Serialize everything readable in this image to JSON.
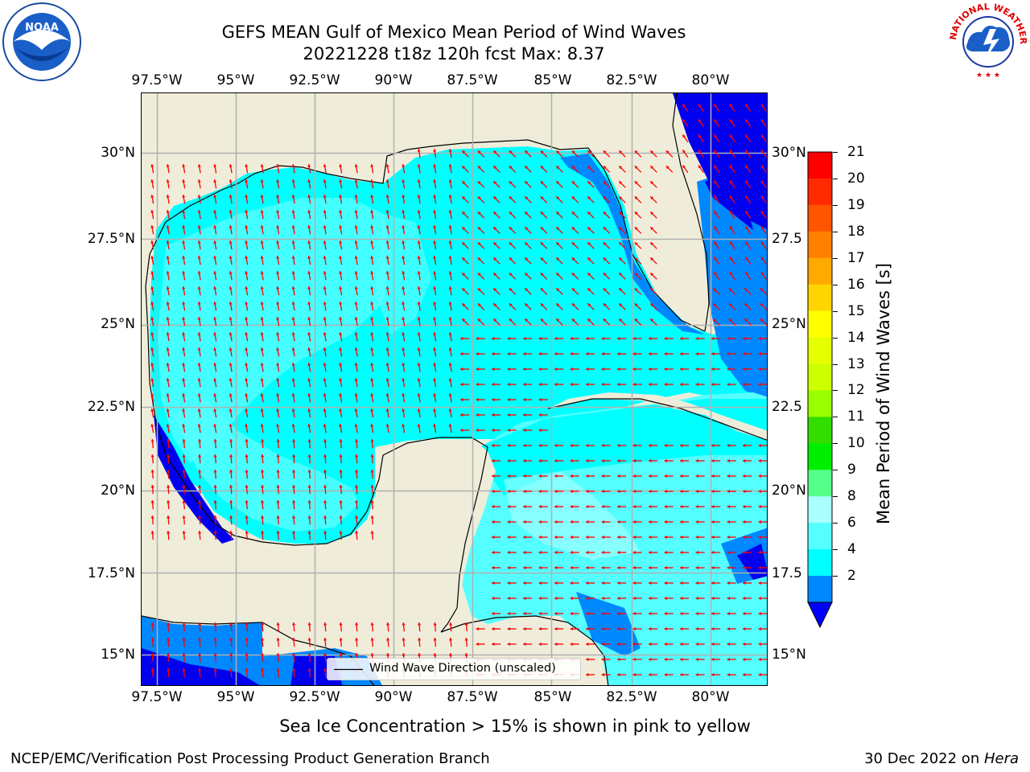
{
  "header": {
    "title_line1": "GEFS MEAN Gulf of Mexico Mean Period of Wind Waves",
    "title_line2": "20221228 t18z 120h fcst   Max: 8.37"
  },
  "logos": {
    "left": "noora-logo",
    "right": "nws-logo",
    "nws_text": "NATIONAL WEATHER SERVICE"
  },
  "axes": {
    "lon_labels": [
      "97.5°W",
      "95°W",
      "92.5°W",
      "90°W",
      "87.5°W",
      "85°W",
      "82.5°W",
      "80°W"
    ],
    "lat_labels": [
      "30°N",
      "27.5°N",
      "25°N",
      "22.5°N",
      "20°N",
      "17.5°N",
      "15°N"
    ],
    "right_lat_labels": [
      "30°N",
      "27.5",
      "25°N",
      "22.5",
      "20°N",
      "17.5",
      "15°N"
    ]
  },
  "legend": {
    "label": "Wind Wave Direction (unscaled)"
  },
  "colorbar": {
    "label": "Mean Period of Wind Waves [s]",
    "ticks": [
      "21",
      "20",
      "19",
      "18",
      "17",
      "16",
      "15",
      "14",
      "13",
      "12",
      "11",
      "10",
      "9",
      "8",
      "6",
      "4",
      "2"
    ],
    "colors": [
      "#ff0000",
      "#ff2a00",
      "#ff5500",
      "#ff8000",
      "#ffaa00",
      "#ffd400",
      "#ffff00",
      "#e6ff00",
      "#ccff00",
      "#99ff00",
      "#33dd00",
      "#00ee00",
      "#55ff88",
      "#aaffff",
      "#55ffff",
      "#00ffff",
      "#0088ff"
    ],
    "min_color": "#0000ff"
  },
  "footer": {
    "note": "Sea Ice Concentration > 15% is shown in pink to yellow",
    "left": "NCEP/EMC/Verification Post Processing Product Generation Branch",
    "date": "30 Dec 2022 on ",
    "host": "Hera"
  },
  "colors": {
    "land": "#efedda",
    "sea_cyan": "#00ffff",
    "sea_light": "#55ffff",
    "sea_blue": "#0088ff",
    "sea_deep": "#0000ee",
    "arrow": "#ff0000",
    "grid": "#b0b0b0"
  }
}
